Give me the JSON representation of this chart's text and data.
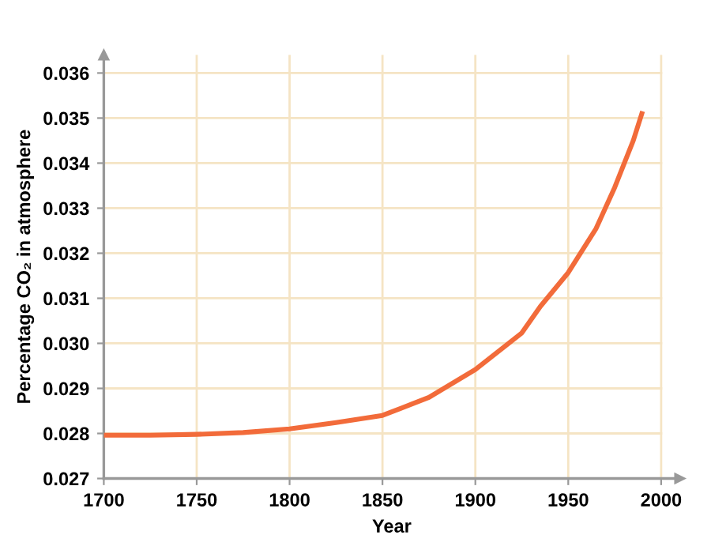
{
  "chart_data": {
    "type": "line",
    "xlabel": "Year",
    "ylabel": "Percentage CO₂ in atmosphere",
    "x": [
      1700,
      1725,
      1750,
      1775,
      1800,
      1825,
      1850,
      1875,
      1900,
      1925,
      1935,
      1950,
      1965,
      1975,
      1985,
      1990
    ],
    "series": [
      {
        "color": "#f26b3a",
        "values": [
          0.02796,
          0.02796,
          0.02798,
          0.02802,
          0.0281,
          0.02824,
          0.0284,
          0.0288,
          0.02942,
          0.03023,
          0.03082,
          0.03157,
          0.03255,
          0.03346,
          0.0345,
          0.03515
        ]
      }
    ],
    "xlim": [
      1700,
      2010
    ],
    "ylim": [
      0.027,
      0.0364
    ],
    "xticks": [
      1700,
      1750,
      1800,
      1850,
      1900,
      1950,
      2000
    ],
    "yticks": [
      {
        "value": 0.027,
        "label": "0.027"
      },
      {
        "value": 0.028,
        "label": "0.028"
      },
      {
        "value": 0.029,
        "label": "0.029"
      },
      {
        "value": 0.03,
        "label": "0.030"
      },
      {
        "value": 0.031,
        "label": "0.031"
      },
      {
        "value": 0.032,
        "label": "0.032"
      },
      {
        "value": 0.033,
        "label": "0.033"
      },
      {
        "value": 0.034,
        "label": "0.034"
      },
      {
        "value": 0.035,
        "label": "0.035"
      },
      {
        "value": 0.036,
        "label": "0.036"
      }
    ],
    "grid": true,
    "marker": "none",
    "line_style": "solid"
  }
}
